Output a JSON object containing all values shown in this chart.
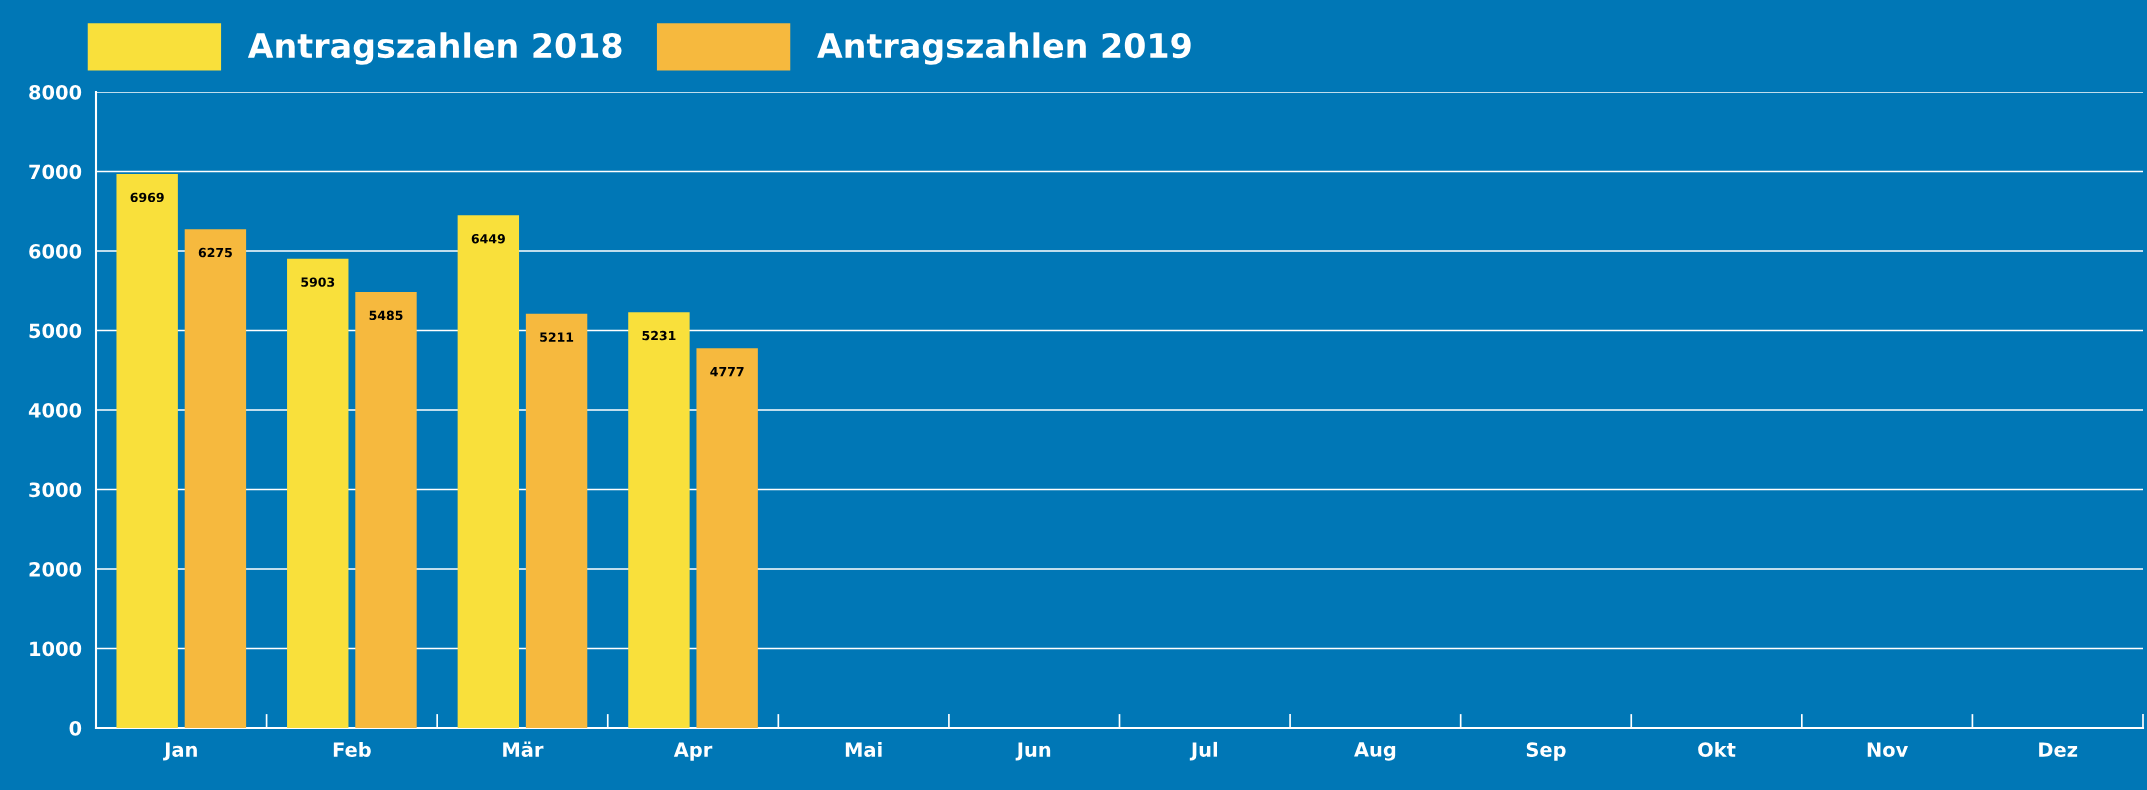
{
  "chart_data": {
    "type": "bar",
    "categories": [
      "Jan",
      "Feb",
      "Mär",
      "Apr",
      "Mai",
      "Jun",
      "Jul",
      "Aug",
      "Sep",
      "Okt",
      "Nov",
      "Dez"
    ],
    "series": [
      {
        "name": "Antragszahlen 2018",
        "color": "#f9e03b",
        "values": [
          6969,
          5903,
          6449,
          5231,
          null,
          null,
          null,
          null,
          null,
          null,
          null,
          null
        ]
      },
      {
        "name": "Antragszahlen 2019",
        "color": "#f6b93e",
        "values": [
          6275,
          5485,
          5211,
          4777,
          null,
          null,
          null,
          null,
          null,
          null,
          null,
          null
        ]
      }
    ],
    "ylim": [
      0,
      8000
    ],
    "yticks": [
      0,
      1000,
      2000,
      3000,
      4000,
      5000,
      6000,
      7000,
      8000
    ],
    "grid": "y",
    "legend": "top left",
    "data_labels": true
  }
}
